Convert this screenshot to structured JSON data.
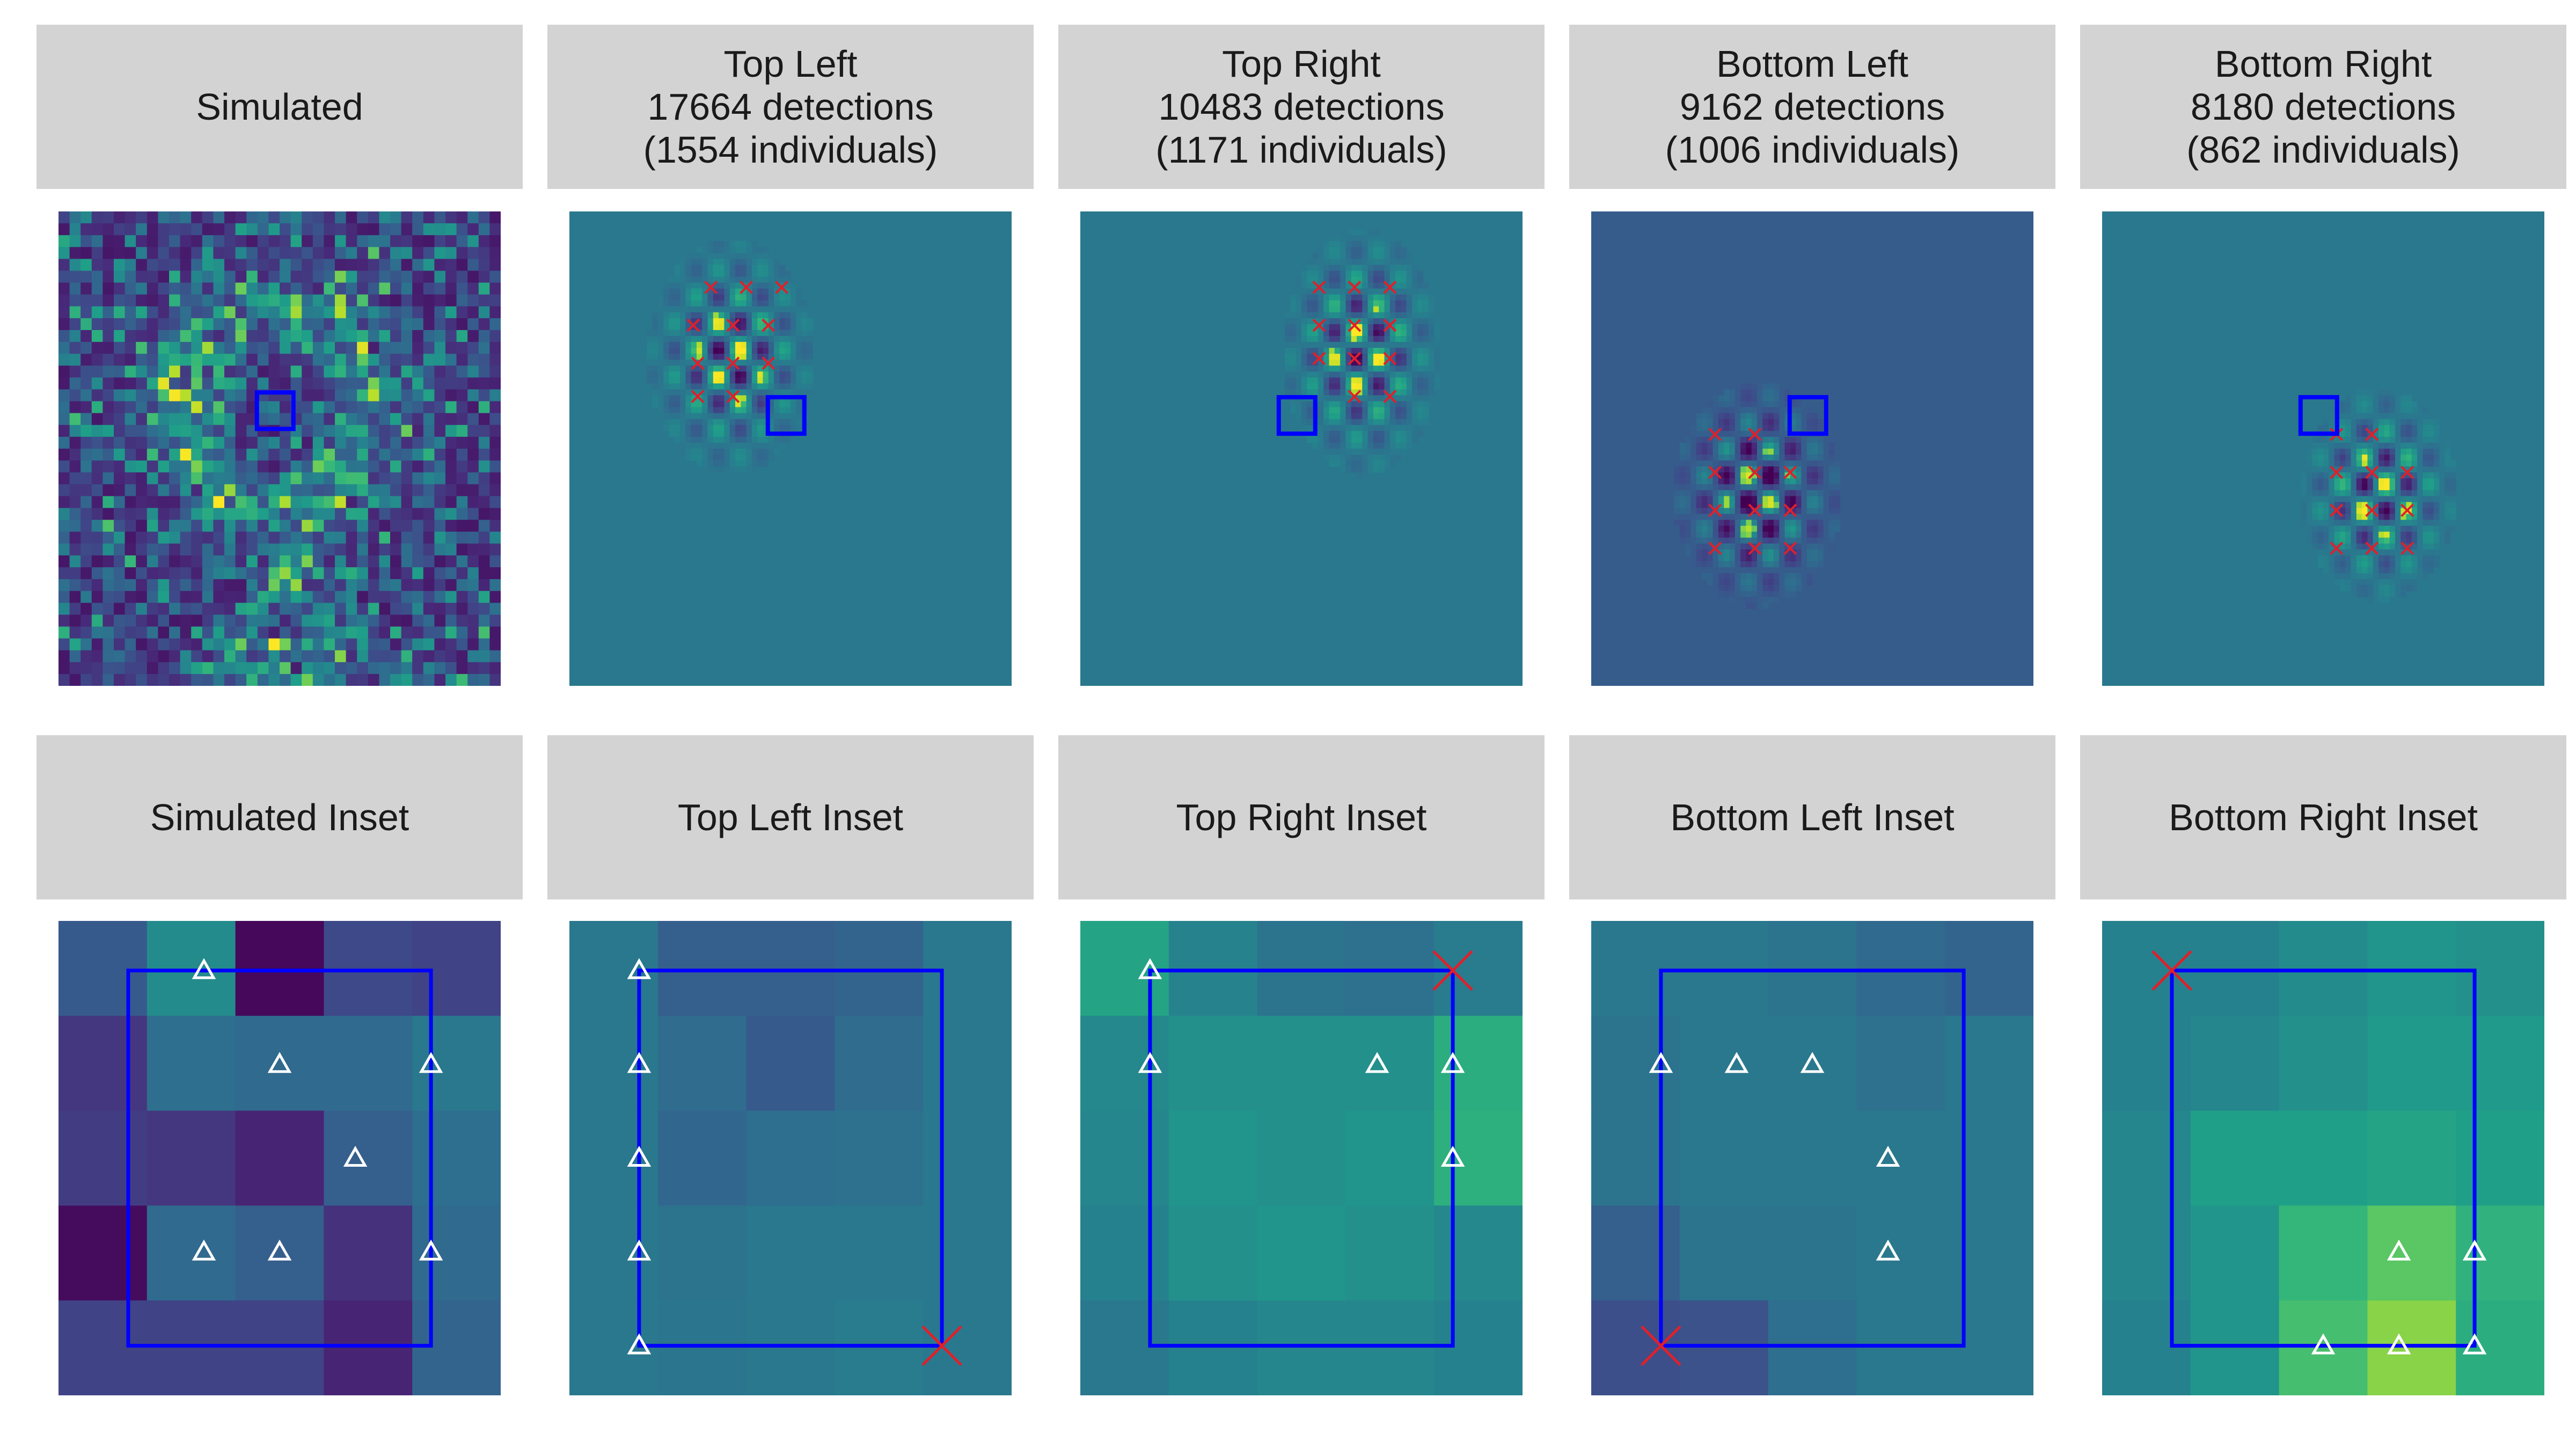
{
  "top_panels": [
    {
      "id": "simulated",
      "header": {
        "line1": "Simulated",
        "line2": "",
        "line3": ""
      }
    },
    {
      "id": "top-left",
      "header": {
        "line1": "Top Left",
        "line2": "17664 detections",
        "line3": "(1554 individuals)"
      }
    },
    {
      "id": "top-right",
      "header": {
        "line1": "Top Right",
        "line2": "10483 detections",
        "line3": "(1171 individuals)"
      }
    },
    {
      "id": "bottom-left",
      "header": {
        "line1": "Bottom Left",
        "line2": "9162 detections",
        "line3": "(1006 individuals)"
      }
    },
    {
      "id": "bottom-right",
      "header": {
        "line1": "Bottom Right",
        "line2": "8180 detections",
        "line3": "(862 individuals)"
      }
    }
  ],
  "inset_panels": [
    {
      "id": "simulated-inset",
      "header": "Simulated Inset"
    },
    {
      "id": "top-left-inset",
      "header": "Top Left Inset"
    },
    {
      "id": "top-right-inset",
      "header": "Top Right Inset"
    },
    {
      "id": "bottom-left-inset",
      "header": "Bottom Left Inset"
    },
    {
      "id": "bottom-right-inset",
      "header": "Bottom Right Inset"
    }
  ],
  "colors": {
    "header_background": "#d3d3d3",
    "inset_box": "#0000ff",
    "cross_marker": "#e0202a",
    "triangle_marker": "#ffffff",
    "colormap": "viridis"
  },
  "inset_grids": [
    [
      [
        0.28,
        0.48,
        0.02,
        0.22,
        0.2
      ],
      [
        0.16,
        0.36,
        0.34,
        0.34,
        0.4
      ],
      [
        0.18,
        0.16,
        0.1,
        0.3,
        0.36
      ],
      [
        0.03,
        0.34,
        0.3,
        0.14,
        0.34
      ],
      [
        0.2,
        0.2,
        0.2,
        0.1,
        0.32
      ]
    ],
    [
      [
        0.4,
        0.3,
        0.3,
        0.32,
        0.4
      ],
      [
        0.4,
        0.35,
        0.28,
        0.35,
        0.4
      ],
      [
        0.4,
        0.33,
        0.36,
        0.37,
        0.4
      ],
      [
        0.4,
        0.38,
        0.4,
        0.4,
        0.4
      ],
      [
        0.4,
        0.39,
        0.4,
        0.42,
        0.4
      ]
    ],
    [
      [
        0.58,
        0.45,
        0.38,
        0.37,
        0.42
      ],
      [
        0.47,
        0.5,
        0.5,
        0.5,
        0.62
      ],
      [
        0.46,
        0.52,
        0.5,
        0.52,
        0.63
      ],
      [
        0.44,
        0.5,
        0.52,
        0.5,
        0.47
      ],
      [
        0.4,
        0.44,
        0.46,
        0.46,
        0.44
      ]
    ],
    [
      [
        0.4,
        0.4,
        0.38,
        0.34,
        0.32
      ],
      [
        0.38,
        0.4,
        0.4,
        0.37,
        0.4
      ],
      [
        0.38,
        0.4,
        0.4,
        0.4,
        0.4
      ],
      [
        0.3,
        0.38,
        0.38,
        0.4,
        0.4
      ],
      [
        0.24,
        0.25,
        0.36,
        0.4,
        0.4
      ]
    ],
    [
      [
        0.44,
        0.44,
        0.48,
        0.52,
        0.5
      ],
      [
        0.44,
        0.46,
        0.5,
        0.54,
        0.54
      ],
      [
        0.46,
        0.56,
        0.56,
        0.58,
        0.56
      ],
      [
        0.46,
        0.52,
        0.66,
        0.74,
        0.64
      ],
      [
        0.44,
        0.52,
        0.7,
        0.82,
        0.62
      ]
    ]
  ],
  "inset_triangles": [
    [
      [
        1,
        0
      ],
      [
        2,
        1
      ],
      [
        4,
        1
      ],
      [
        3,
        2
      ],
      [
        1,
        3
      ],
      [
        2,
        3
      ],
      [
        4,
        3
      ]
    ],
    [
      [
        0,
        0
      ],
      [
        0,
        1
      ],
      [
        0,
        2
      ],
      [
        0,
        3
      ],
      [
        0,
        4
      ]
    ],
    [
      [
        0,
        0
      ],
      [
        0,
        1
      ],
      [
        3,
        1
      ],
      [
        4,
        1
      ],
      [
        4,
        2
      ]
    ],
    [
      [
        0,
        1
      ],
      [
        1,
        1
      ],
      [
        2,
        1
      ],
      [
        3,
        2
      ],
      [
        3,
        3
      ]
    ],
    [
      [
        3,
        3
      ],
      [
        4,
        3
      ],
      [
        2,
        4
      ],
      [
        3,
        4
      ],
      [
        4,
        4
      ]
    ]
  ],
  "inset_crosses": [
    [],
    [
      [
        4,
        4
      ]
    ],
    [
      [
        4,
        0
      ]
    ],
    [
      [
        0,
        4
      ]
    ],
    [
      [
        0,
        0
      ]
    ]
  ],
  "top_crosses": [
    [],
    [
      [
        0.32,
        0.16
      ],
      [
        0.4,
        0.16
      ],
      [
        0.48,
        0.16
      ],
      [
        0.28,
        0.24
      ],
      [
        0.37,
        0.24
      ],
      [
        0.45,
        0.24
      ],
      [
        0.29,
        0.32
      ],
      [
        0.37,
        0.32
      ],
      [
        0.45,
        0.32
      ],
      [
        0.29,
        0.39
      ],
      [
        0.37,
        0.39
      ]
    ],
    [
      [
        0.54,
        0.16
      ],
      [
        0.62,
        0.16
      ],
      [
        0.7,
        0.16
      ],
      [
        0.54,
        0.24
      ],
      [
        0.62,
        0.24
      ],
      [
        0.7,
        0.24
      ],
      [
        0.54,
        0.31
      ],
      [
        0.62,
        0.31
      ],
      [
        0.7,
        0.31
      ],
      [
        0.62,
        0.39
      ],
      [
        0.7,
        0.39
      ]
    ],
    [
      [
        0.28,
        0.47
      ],
      [
        0.37,
        0.47
      ],
      [
        0.28,
        0.55
      ],
      [
        0.37,
        0.55
      ],
      [
        0.45,
        0.55
      ],
      [
        0.28,
        0.63
      ],
      [
        0.37,
        0.63
      ],
      [
        0.45,
        0.63
      ],
      [
        0.28,
        0.71
      ],
      [
        0.37,
        0.71
      ],
      [
        0.45,
        0.71
      ]
    ],
    [
      [
        0.53,
        0.47
      ],
      [
        0.61,
        0.47
      ],
      [
        0.53,
        0.55
      ],
      [
        0.61,
        0.55
      ],
      [
        0.69,
        0.55
      ],
      [
        0.53,
        0.63
      ],
      [
        0.61,
        0.63
      ],
      [
        0.69,
        0.63
      ],
      [
        0.53,
        0.71
      ],
      [
        0.61,
        0.71
      ],
      [
        0.69,
        0.71
      ]
    ]
  ],
  "top_boxes": [
    [
      0.49,
      0.42
    ],
    [
      0.49,
      0.43
    ],
    [
      0.49,
      0.43
    ],
    [
      0.49,
      0.43
    ],
    [
      0.49,
      0.43
    ]
  ]
}
